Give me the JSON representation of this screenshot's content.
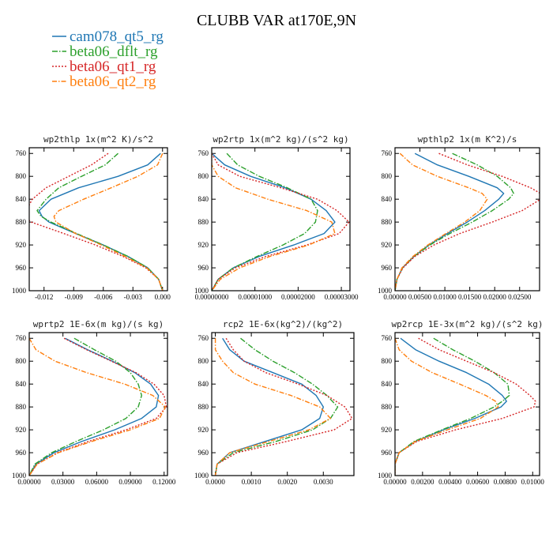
{
  "title": "CLUBB VAR at170E,9N",
  "colors": {
    "cam078_qt5_rg": "#1f77b4",
    "beta06_dflt_rg": "#2ca02c",
    "beta06_qt1_rg": "#d62728",
    "beta06_qt2_rg": "#ff7f0e"
  },
  "legend": [
    {
      "name": "cam078_qt5_rg",
      "color": "#1f77b4",
      "dash": ""
    },
    {
      "name": "beta06_dflt_rg",
      "color": "#2ca02c",
      "dash": "7,2,1.5,2"
    },
    {
      "name": "beta06_qt1_rg",
      "color": "#d62728",
      "dash": "2,2"
    },
    {
      "name": "beta06_qt2_rg",
      "color": "#ff7f0e",
      "dash": "6,2,1.5,2"
    }
  ],
  "chart_data": [
    {
      "type": "line",
      "title": "wp2thlp  1x(m^2 K)/s^2",
      "xlim": [
        -0.0135,
        0.0005
      ],
      "ylim": [
        1000,
        750
      ],
      "xticks": [
        -0.012,
        -0.009,
        -0.006,
        -0.003,
        0.0
      ],
      "xtick_labels": [
        "-0.012",
        "-0.009",
        "-0.006",
        "-0.003",
        "0.000"
      ],
      "yticks": [
        760,
        800,
        840,
        880,
        920,
        960,
        1000
      ],
      "y": [
        760,
        780,
        800,
        820,
        840,
        860,
        870,
        880,
        900,
        920,
        940,
        960,
        980,
        1000
      ],
      "series": [
        {
          "name": "cam078_qt5_rg",
          "values": [
            -0.0002,
            -0.0015,
            -0.0045,
            -0.0085,
            -0.0113,
            -0.0125,
            -0.0122,
            -0.0115,
            -0.0088,
            -0.006,
            -0.0035,
            -0.0015,
            -0.0004,
            0.0
          ]
        },
        {
          "name": "beta06_dflt_rg",
          "values": [
            -0.0045,
            -0.0058,
            -0.0082,
            -0.0105,
            -0.0118,
            -0.0127,
            -0.0123,
            -0.0113,
            -0.0087,
            -0.006,
            -0.0035,
            -0.0015,
            -0.0004,
            0.0
          ]
        },
        {
          "name": "beta06_qt1_rg",
          "values": [
            -0.0055,
            -0.0072,
            -0.0095,
            -0.0118,
            -0.0132,
            -0.0138,
            -0.014,
            -0.0133,
            -0.01,
            -0.0068,
            -0.004,
            -0.0017,
            -0.0004,
            0.0
          ]
        },
        {
          "name": "beta06_qt2_rg",
          "values": [
            0.0,
            -0.0005,
            -0.0025,
            -0.0052,
            -0.008,
            -0.0105,
            -0.011,
            -0.0108,
            -0.0088,
            -0.0062,
            -0.0038,
            -0.0016,
            -0.0004,
            0.0
          ]
        }
      ]
    },
    {
      "type": "line",
      "title": "wp2rtp  1x(m^2 kg)/(s^2 kg)",
      "xlim": [
        0.0,
        3.2e-05
      ],
      "ylim": [
        1000,
        750
      ],
      "xticks": [
        0.0,
        1e-05,
        2e-05,
        3e-05
      ],
      "xtick_labels": [
        "0.00000000",
        "0.00001000",
        "0.00002000",
        "0.00003000"
      ],
      "yticks": [
        760,
        800,
        840,
        880,
        920,
        960,
        1000
      ],
      "y": [
        760,
        780,
        800,
        820,
        840,
        860,
        880,
        900,
        920,
        940,
        960,
        980,
        1000
      ],
      "series": [
        {
          "name": "cam078_qt5_rg",
          "values": [
            0.0,
            3e-06,
            9e-06,
            1.7e-05,
            2.3e-05,
            2.65e-05,
            2.85e-05,
            2.6e-05,
            1.9e-05,
            1.1e-05,
            5e-06,
            1.5e-06,
            0.0
          ]
        },
        {
          "name": "beta06_dflt_rg",
          "values": [
            3.5e-06,
            6e-06,
            1.1e-05,
            1.75e-05,
            2.3e-05,
            2.45e-05,
            2.4e-05,
            2.15e-05,
            1.65e-05,
            1.05e-05,
            5e-06,
            1.5e-06,
            0.0
          ]
        },
        {
          "name": "beta06_qt1_rg",
          "values": [
            0.0,
            1.5e-06,
            6.5e-06,
            1.6e-05,
            2.45e-05,
            2.9e-05,
            3.18e-05,
            2.95e-05,
            2.2e-05,
            1.25e-05,
            5.5e-06,
            1.5e-06,
            0.0
          ]
        },
        {
          "name": "beta06_qt2_rg",
          "values": [
            0.0,
            0.0,
            1.5e-06,
            5.5e-06,
            1.3e-05,
            2.2e-05,
            2.78e-05,
            2.85e-05,
            2.25e-05,
            1.35e-05,
            6.5e-06,
            2e-06,
            0.0
          ]
        }
      ]
    },
    {
      "type": "line",
      "title": "wpthlp2  1x(m K^2)/s",
      "xlim": [
        0.0,
        0.029
      ],
      "ylim": [
        1000,
        750
      ],
      "xticks": [
        0.0,
        0.005,
        0.01,
        0.015,
        0.02,
        0.025
      ],
      "xtick_labels": [
        "0.00000",
        "0.00500",
        "0.01000",
        "0.01500",
        "0.02000",
        "0.02500"
      ],
      "yticks": [
        760,
        800,
        840,
        880,
        920,
        960,
        1000
      ],
      "y": [
        760,
        780,
        800,
        820,
        830,
        840,
        860,
        880,
        900,
        920,
        940,
        960,
        980,
        1000
      ],
      "series": [
        {
          "name": "cam078_qt5_rg",
          "values": [
            0.004,
            0.0085,
            0.0148,
            0.0205,
            0.0218,
            0.0208,
            0.018,
            0.0145,
            0.0105,
            0.0068,
            0.0038,
            0.0015,
            0.0004,
            0.0
          ]
        },
        {
          "name": "beta06_dflt_rg",
          "values": [
            0.0115,
            0.0165,
            0.0205,
            0.0232,
            0.0238,
            0.0228,
            0.0195,
            0.0155,
            0.011,
            0.007,
            0.0038,
            0.0015,
            0.0004,
            0.0
          ]
        },
        {
          "name": "beta06_qt1_rg",
          "values": [
            0.0088,
            0.0145,
            0.0215,
            0.0272,
            0.0292,
            0.0292,
            0.0255,
            0.0195,
            0.013,
            0.0078,
            0.004,
            0.0016,
            0.0004,
            0.0
          ]
        },
        {
          "name": "beta06_qt2_rg",
          "values": [
            0.001,
            0.0035,
            0.0085,
            0.0148,
            0.0175,
            0.0185,
            0.017,
            0.014,
            0.0102,
            0.0066,
            0.0036,
            0.0014,
            0.0004,
            0.0
          ]
        }
      ]
    },
    {
      "type": "line",
      "title": "wprtp2  1E-6x(m kg)/(s kg)",
      "xlim": [
        0.0,
        0.123
      ],
      "ylim": [
        1000,
        750
      ],
      "xticks": [
        0.0,
        0.03,
        0.06,
        0.09,
        0.12
      ],
      "xtick_labels": [
        "0.00000",
        "0.03000",
        "0.06000",
        "0.09000",
        "0.12000"
      ],
      "yticks": [
        760,
        800,
        840,
        880,
        920,
        960,
        1000
      ],
      "y": [
        760,
        780,
        800,
        820,
        840,
        860,
        880,
        900,
        920,
        940,
        960,
        980,
        1000
      ],
      "series": [
        {
          "name": "cam078_qt5_rg",
          "values": [
            0.032,
            0.052,
            0.074,
            0.094,
            0.108,
            0.115,
            0.113,
            0.1,
            0.076,
            0.047,
            0.022,
            0.006,
            0.0
          ]
        },
        {
          "name": "beta06_dflt_rg",
          "values": [
            0.04,
            0.058,
            0.077,
            0.09,
            0.097,
            0.1,
            0.097,
            0.086,
            0.066,
            0.042,
            0.02,
            0.005,
            0.0
          ]
        },
        {
          "name": "beta06_qt1_rg",
          "values": [
            0.031,
            0.051,
            0.073,
            0.095,
            0.111,
            0.12,
            0.122,
            0.113,
            0.086,
            0.053,
            0.025,
            0.007,
            0.0
          ]
        },
        {
          "name": "beta06_qt2_rg",
          "values": [
            0.0,
            0.006,
            0.023,
            0.051,
            0.085,
            0.11,
            0.121,
            0.116,
            0.09,
            0.056,
            0.026,
            0.007,
            0.0
          ]
        }
      ]
    },
    {
      "type": "line",
      "title": "rcp2  1E-6x(kg^2)/(kg^2)",
      "xlim": [
        -0.0001,
        0.00385
      ],
      "ylim": [
        1000,
        750
      ],
      "xticks": [
        0.0,
        0.001,
        0.002,
        0.003
      ],
      "xtick_labels": [
        "0.0000",
        "0.0010",
        "0.0020",
        "0.0030"
      ],
      "yticks": [
        760,
        800,
        840,
        880,
        920,
        960,
        1000
      ],
      "y": [
        760,
        780,
        800,
        820,
        840,
        860,
        880,
        900,
        920,
        940,
        960,
        980,
        1000
      ],
      "series": [
        {
          "name": "cam078_qt5_rg",
          "values": [
            0.0002,
            0.0004,
            0.0008,
            0.0016,
            0.0024,
            0.0028,
            0.003,
            0.0029,
            0.0024,
            0.0014,
            0.0004,
            5e-05,
            0.0
          ]
        },
        {
          "name": "beta06_dflt_rg",
          "values": [
            0.0007,
            0.0011,
            0.0016,
            0.0022,
            0.0027,
            0.0031,
            0.0034,
            0.0032,
            0.0027,
            0.0017,
            0.0005,
            5e-05,
            0.0
          ]
        },
        {
          "name": "beta06_qt1_rg",
          "values": [
            0.0003,
            0.0005,
            0.0008,
            0.0014,
            0.0023,
            0.0031,
            0.0036,
            0.0038,
            0.0033,
            0.002,
            0.0006,
            5e-05,
            0.0
          ]
        },
        {
          "name": "beta06_qt2_rg",
          "values": [
            0.0,
            0.0,
            0.0002,
            0.0005,
            0.0011,
            0.0021,
            0.0029,
            0.0032,
            0.0026,
            0.0015,
            0.0004,
            5e-05,
            0.0
          ]
        }
      ]
    },
    {
      "type": "line",
      "title": "wp2rcp  1E-3x(m^2 kg)/(s^2 kg)",
      "xlim": [
        0.0,
        0.0105
      ],
      "ylim": [
        1000,
        750
      ],
      "xticks": [
        0.0,
        0.002,
        0.004,
        0.006,
        0.008,
        0.01
      ],
      "xtick_labels": [
        "0.00000",
        "0.00200",
        "0.00400",
        "0.00600",
        "0.00800",
        "0.01000"
      ],
      "yticks": [
        760,
        800,
        840,
        880,
        920,
        960,
        1000
      ],
      "y": [
        760,
        780,
        800,
        820,
        840,
        860,
        870,
        880,
        900,
        920,
        940,
        960,
        980,
        1000
      ],
      "series": [
        {
          "name": "cam078_qt5_rg",
          "values": [
            0.0004,
            0.0015,
            0.0032,
            0.0052,
            0.0068,
            0.0078,
            0.0081,
            0.0077,
            0.0058,
            0.0035,
            0.0015,
            0.0003,
            0.0,
            0.0
          ]
        },
        {
          "name": "beta06_dflt_rg",
          "values": [
            0.0028,
            0.0042,
            0.0058,
            0.0072,
            0.0082,
            0.0083,
            0.0078,
            0.0072,
            0.0055,
            0.0034,
            0.0014,
            0.0003,
            0.0,
            0.0
          ]
        },
        {
          "name": "beta06_qt1_rg",
          "values": [
            0.0017,
            0.0032,
            0.0052,
            0.0072,
            0.0088,
            0.0098,
            0.0102,
            0.0101,
            0.0078,
            0.0044,
            0.0016,
            0.0003,
            0.0,
            0.0
          ]
        },
        {
          "name": "beta06_qt2_rg",
          "values": [
            0.0,
            0.0003,
            0.0012,
            0.0027,
            0.0047,
            0.0066,
            0.0073,
            0.0075,
            0.0062,
            0.0038,
            0.0015,
            0.0003,
            0.0,
            0.0
          ]
        }
      ]
    }
  ]
}
